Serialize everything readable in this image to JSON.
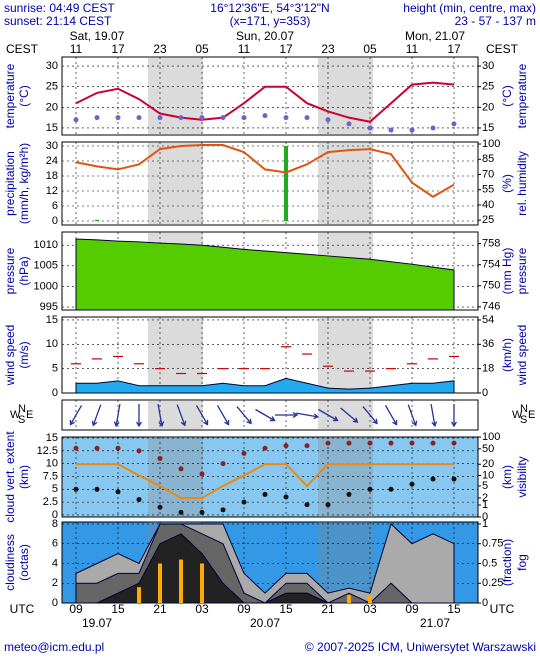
{
  "header": {
    "sunrise": "sunrise: 04:49 CEST",
    "sunset": "sunset: 21:14 CEST",
    "coords": "16°12'36\"E, 54°3'12\"N",
    "grid": "(x=171, y=353)",
    "height_label": "height (min, centre, max)",
    "height": "23 - 57 - 137 m"
  },
  "time_axis": {
    "top_label": "CEST",
    "bottom_label": "UTC",
    "cest": [
      "11",
      null,
      "17",
      null,
      "23",
      null,
      "05",
      null,
      "11",
      null,
      "17",
      null,
      "23",
      null,
      "05",
      null,
      "11",
      null,
      "17"
    ],
    "utc": [
      "09",
      null,
      "15",
      null,
      "21",
      null,
      "03",
      null,
      "09",
      null,
      "15",
      null,
      "21",
      null,
      "03",
      null,
      "09",
      null,
      "15"
    ],
    "days_top": [
      "Sat, 19.07",
      "Sun, 20.07",
      "Mon, 21.07"
    ],
    "days_bottom": [
      "19.07",
      "20.07",
      "21.07"
    ],
    "wind_compass": [
      "W",
      "N",
      "S",
      "E"
    ]
  },
  "footer": {
    "email": "meteo@icm.edu.pl",
    "copyright": "© 2007-2025 ICM, Uniwersytet Warszawski"
  },
  "chart_data": [
    {
      "type": "line",
      "ylabel": [
        "temperature",
        "(°C)"
      ],
      "y2label": [
        "(°C)",
        "temperature"
      ],
      "background": "#ffffff",
      "ylim": [
        13.3,
        32.2
      ],
      "yticks": [
        15,
        20,
        25,
        30
      ],
      "y2lim": [
        13.3,
        32.2
      ],
      "y2ticks": [
        15,
        20,
        25,
        30
      ],
      "grid": true,
      "series": [
        {
          "mark": "line",
          "color": "#cc0033",
          "values": [
            21,
            23.5,
            24.5,
            22,
            18.5,
            17.5,
            17,
            17.5,
            21,
            25,
            25,
            21,
            19,
            17.5,
            16.5,
            21,
            25.5,
            26,
            25.5
          ]
        },
        {
          "mark": "dots",
          "color": "#6666cc",
          "values": [
            17,
            17.5,
            17.5,
            17.5,
            17.5,
            17.5,
            17.5,
            17.5,
            17.5,
            18,
            17.5,
            17.5,
            17,
            16,
            15,
            14.5,
            14.5,
            15,
            16
          ]
        }
      ]
    },
    {
      "type": "line",
      "ylabel": [
        "precipitation",
        "(mm/h, kg/m²h)"
      ],
      "y2label": [
        "(%)",
        "rel. humidity"
      ],
      "background": "#ffffff",
      "ylim": [
        -1.6,
        31.6
      ],
      "yticks": [
        0,
        6,
        12,
        18,
        24,
        30
      ],
      "y2lim": [
        20.2,
        102
      ],
      "y2ticks": [
        25,
        40,
        55,
        70,
        85,
        100
      ],
      "grid": true,
      "series": [
        {
          "mark": "bar",
          "color": "#22aa22",
          "values": [
            0,
            0.5,
            0,
            0,
            0,
            0,
            0,
            0,
            0,
            0.2,
            30,
            0,
            0,
            0,
            0,
            0,
            0,
            0,
            0
          ]
        },
        {
          "mark": "line",
          "color": "#dd5511",
          "axis": "y2",
          "values": [
            82,
            78,
            75,
            80,
            95,
            98,
            99,
            99,
            92,
            75,
            72,
            80,
            92,
            94,
            95,
            90,
            62,
            48,
            60
          ]
        }
      ]
    },
    {
      "type": "area",
      "ylabel": [
        "pressure",
        "(hPa)"
      ],
      "y2label": [
        "(mm Hg)",
        "pressure"
      ],
      "background": "#ffffff",
      "ylim": [
        994.3,
        1013.2
      ],
      "yticks": [
        995,
        1000,
        1005,
        1010
      ],
      "y2lim": [
        745.4,
        760.2
      ],
      "y2ticks": [
        746,
        750,
        754,
        758
      ],
      "grid": true,
      "series": [
        {
          "mark": "area",
          "color": "#55cc00",
          "values": [
            1011.5,
            1011.3,
            1011,
            1010.8,
            1010.5,
            1010.3,
            1010,
            1009.5,
            1009,
            1008.6,
            1008.2,
            1007.8,
            1007.4,
            1007,
            1006.6,
            1006,
            1005.4,
            1004.7,
            1004
          ]
        }
      ]
    },
    {
      "type": "area",
      "ylabel": [
        "wind speed",
        "(m/s)"
      ],
      "y2label": [
        "(km/h)",
        "wind speed"
      ],
      "background": "#ffffff",
      "ylim": [
        0,
        15.6
      ],
      "yticks": [
        0,
        5,
        10,
        15
      ],
      "y2lim": [
        0,
        56.2
      ],
      "y2ticks": [
        0,
        18,
        36,
        54
      ],
      "grid": true,
      "series": [
        {
          "mark": "area",
          "color": "#22aaee",
          "values": [
            2,
            2,
            2.5,
            1.5,
            1.5,
            1.5,
            1.5,
            2,
            1.5,
            1.5,
            3,
            2,
            1,
            0.8,
            1,
            1.5,
            2,
            2,
            2.5
          ]
        },
        {
          "mark": "dashes",
          "color": "#cc0000",
          "values": [
            6,
            7,
            7.5,
            6,
            5,
            4,
            4,
            5,
            5,
            5,
            9.5,
            8,
            5.5,
            4.5,
            4.5,
            5,
            6,
            7,
            7.5
          ]
        }
      ]
    },
    {
      "type": "wind-direction",
      "background": "#ffffff",
      "values": [
        30,
        20,
        10,
        0,
        350,
        340,
        330,
        330,
        320,
        300,
        270,
        280,
        300,
        310,
        320,
        330,
        340,
        350,
        0
      ],
      "color": "#223399"
    },
    {
      "type": "line",
      "ylabel": [
        "cloud vert. extent",
        "(km)"
      ],
      "y2label": [
        "(km)",
        "visibility"
      ],
      "background": "#88c8f0",
      "ylim": [
        -0.4,
        15.2
      ],
      "yticks": [
        0,
        2.5,
        5,
        7.5,
        10,
        12.5,
        15
      ],
      "y2lim": [
        0,
        100
      ],
      "y2scale": "log1p",
      "y2ticks": [
        0,
        1,
        2,
        5,
        10,
        20,
        50,
        100
      ],
      "grid": true,
      "series": [
        {
          "mark": "dots",
          "color": "#882222",
          "values": [
            13,
            13,
            13,
            12.5,
            11,
            9,
            8,
            10,
            12,
            13,
            13.5,
            13.5,
            14,
            14,
            14,
            14,
            14,
            14,
            14
          ]
        },
        {
          "mark": "dots",
          "color": "#111111",
          "values": [
            5,
            5,
            4.5,
            3,
            1.5,
            0.5,
            0.5,
            1,
            2.5,
            4,
            3.5,
            2,
            2,
            4,
            5,
            5,
            6,
            7,
            7
          ]
        },
        {
          "mark": "line",
          "color": "#ee8811",
          "axis": "y2",
          "values": [
            20,
            20,
            20,
            10,
            5,
            2,
            2,
            5,
            10,
            20,
            20,
            5,
            20,
            20,
            20,
            20,
            20,
            20,
            20
          ]
        }
      ]
    },
    {
      "type": "area",
      "ylabel": [
        "cloudiness",
        "(octas)"
      ],
      "y2label": [
        "(fraction)",
        "fog"
      ],
      "background": "#3399e6",
      "ylim": [
        0,
        8.2
      ],
      "yticks": [
        0,
        2,
        4,
        6,
        8
      ],
      "y2lim": [
        0,
        1.025
      ],
      "y2ticks": [
        0,
        0.25,
        0.5,
        0.75,
        1
      ],
      "grid": true,
      "series": [
        {
          "mark": "area",
          "color": "#aaaaaa",
          "values": [
            3,
            4,
            5,
            4,
            8,
            8,
            8,
            8,
            3,
            1,
            3,
            3,
            1,
            1.5,
            1,
            8,
            6,
            7,
            6
          ]
        },
        {
          "mark": "area",
          "color": "#666666",
          "values": [
            2,
            2,
            3,
            3,
            8,
            8,
            7,
            6,
            1,
            0,
            2,
            2,
            0,
            1,
            0,
            2,
            0,
            0,
            0
          ]
        },
        {
          "mark": "area",
          "color": "#222222",
          "values": [
            0,
            0,
            1,
            2,
            6,
            7,
            5,
            2,
            0,
            0,
            1,
            1,
            0,
            0,
            0,
            0,
            0,
            0,
            0
          ]
        },
        {
          "mark": "bar",
          "color": "#ffaa00",
          "axis": "y2",
          "values": [
            0,
            0,
            0,
            0.2,
            0.5,
            0.55,
            0.5,
            0,
            0,
            0,
            0,
            0,
            0,
            0.1,
            0.1,
            0,
            0,
            0,
            0
          ]
        }
      ]
    }
  ]
}
